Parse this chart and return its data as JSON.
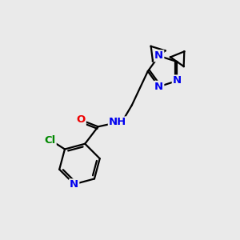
{
  "background_color": "#eaeaea",
  "bond_color": "#000000",
  "atom_colors": {
    "N": "#0000ee",
    "O": "#ee0000",
    "Cl": "#008800",
    "C": "#000000",
    "H": "#000000"
  },
  "font_size": 9.5,
  "lw": 1.6
}
